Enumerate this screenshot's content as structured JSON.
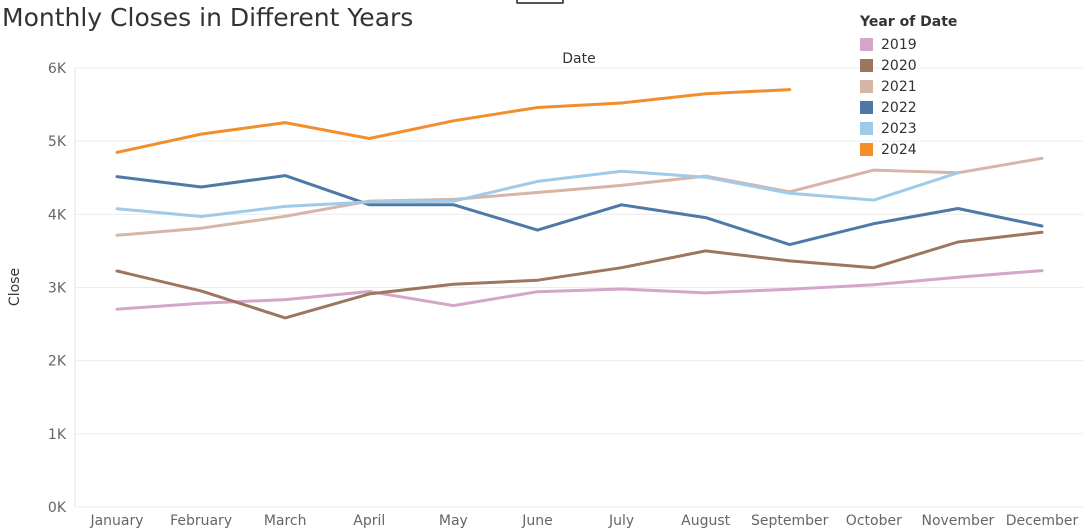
{
  "title": "Monthly Closes in Different Years",
  "legend": {
    "title": "Year of Date",
    "items": [
      {
        "label": "2019",
        "color": "#d4a6c8"
      },
      {
        "label": "2020",
        "color": "#9d7660"
      },
      {
        "label": "2021",
        "color": "#d7b5a6"
      },
      {
        "label": "2022",
        "color": "#4e79a7"
      },
      {
        "label": "2023",
        "color": "#a0cbe8"
      },
      {
        "label": "2024",
        "color": "#f28e2b"
      }
    ]
  },
  "chart_data": {
    "type": "line",
    "xlabel": "Date",
    "ylabel": "Close",
    "ylim": [
      0,
      6000
    ],
    "yticks": [
      0,
      1000,
      2000,
      3000,
      4000,
      5000,
      6000
    ],
    "ytick_labels": [
      "0K",
      "1K",
      "2K",
      "3K",
      "4K",
      "5K",
      "6K"
    ],
    "categories": [
      "January",
      "February",
      "March",
      "April",
      "May",
      "June",
      "July",
      "August",
      "September",
      "October",
      "November",
      "December"
    ],
    "grid": true,
    "legend_position": "top-right",
    "series": [
      {
        "name": "2019",
        "color": "#d4a6c8",
        "values": [
          2704,
          2784,
          2834,
          2946,
          2752,
          2942,
          2980,
          2926,
          2977,
          3038,
          3141,
          3231
        ]
      },
      {
        "name": "2020",
        "color": "#9d7660",
        "values": [
          3226,
          2954,
          2585,
          2912,
          3044,
          3100,
          3271,
          3500,
          3363,
          3270,
          3622,
          3756
        ]
      },
      {
        "name": "2021",
        "color": "#d7b5a6",
        "values": [
          3714,
          3811,
          3973,
          4181,
          4204,
          4298,
          4395,
          4523,
          4308,
          4605,
          4567,
          4766
        ]
      },
      {
        "name": "2022",
        "color": "#4e79a7",
        "values": [
          4516,
          4374,
          4530,
          4132,
          4132,
          3785,
          4130,
          3955,
          3586,
          3872,
          4080,
          3840
        ]
      },
      {
        "name": "2023",
        "color": "#a0cbe8",
        "values": [
          4077,
          3970,
          4109,
          4169,
          4180,
          4450,
          4589,
          4508,
          4288,
          4194,
          4568,
          null
        ]
      },
      {
        "name": "2024",
        "color": "#f28e2b",
        "values": [
          4846,
          5096,
          5254,
          5036,
          5278,
          5460,
          5522,
          5648,
          5705,
          null,
          null,
          null
        ]
      }
    ]
  }
}
